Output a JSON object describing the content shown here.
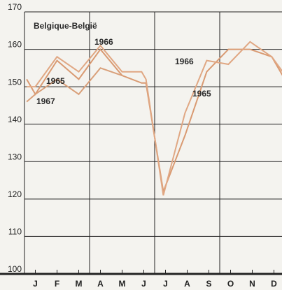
{
  "chart_data": {
    "type": "line",
    "annotations": [
      "Belgique-België",
      "1966",
      "1965",
      "1967",
      "1966",
      "1965"
    ],
    "x": [
      0.1,
      0.5,
      1.5,
      2.5,
      3.5,
      4.5,
      5.4,
      5.6,
      6.4,
      7.4,
      8.4,
      9.4,
      10.4,
      11.4,
      11.9
    ],
    "series": [
      {
        "name": "1965",
        "color": "#d99a72",
        "values": [
          152,
          148,
          157,
          152,
          160,
          153,
          151,
          151,
          122,
          137,
          154,
          160,
          160,
          158,
          153
        ]
      },
      {
        "name": "1966",
        "color": "#e0a783",
        "values": [
          150,
          150,
          158,
          154,
          161,
          154,
          154,
          152,
          121,
          143,
          157,
          156,
          162,
          158,
          154
        ]
      },
      {
        "name": "1967",
        "color": "#d9a07a",
        "values": [
          146,
          148,
          152,
          148,
          155,
          153,
          null,
          null,
          null,
          null,
          null,
          null,
          null,
          null,
          null
        ]
      }
    ],
    "xlim": [
      0,
      12
    ],
    "xticks": [
      {
        "value": 0.5,
        "label": "J"
      },
      {
        "value": 1.5,
        "label": "F"
      },
      {
        "value": 2.5,
        "label": "M"
      },
      {
        "value": 3.5,
        "label": "A"
      },
      {
        "value": 4.5,
        "label": "M"
      },
      {
        "value": 5.5,
        "label": "J"
      },
      {
        "value": 6.5,
        "label": "J"
      },
      {
        "value": 7.5,
        "label": "A"
      },
      {
        "value": 8.5,
        "label": "S"
      },
      {
        "value": 9.5,
        "label": "O"
      },
      {
        "value": 10.5,
        "label": "N"
      },
      {
        "value": 11.5,
        "label": "D"
      }
    ],
    "ylim": [
      100,
      170
    ],
    "yticks": [
      100,
      110,
      120,
      130,
      140,
      150,
      160,
      170
    ],
    "grid": true
  }
}
